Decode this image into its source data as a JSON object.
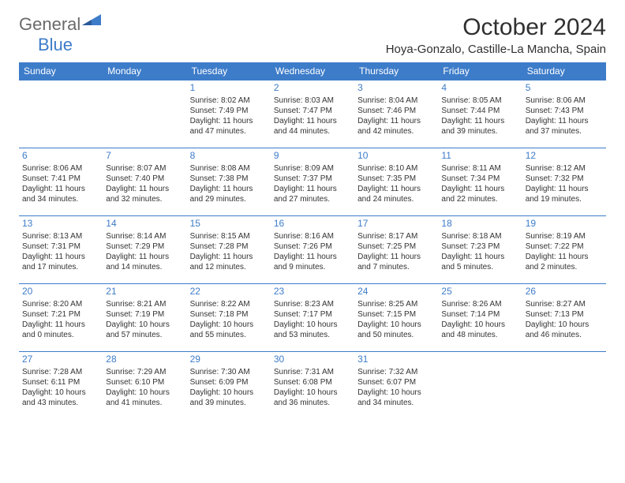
{
  "brand": {
    "general": "General",
    "blue": "Blue"
  },
  "title": "October 2024",
  "location": "Hoya-Gonzalo, Castille-La Mancha, Spain",
  "colors": {
    "header_bg": "#3d7cc9",
    "header_text": "#ffffff",
    "daynum": "#3d7cc9",
    "border": "#3d7cc9",
    "body_text": "#333333",
    "logo_gray": "#6a6a6a"
  },
  "weekdays": [
    "Sunday",
    "Monday",
    "Tuesday",
    "Wednesday",
    "Thursday",
    "Friday",
    "Saturday"
  ],
  "weeks": [
    [
      null,
      null,
      {
        "d": "1",
        "sr": "8:02 AM",
        "ss": "7:49 PM",
        "dl": "11 hours and 47 minutes."
      },
      {
        "d": "2",
        "sr": "8:03 AM",
        "ss": "7:47 PM",
        "dl": "11 hours and 44 minutes."
      },
      {
        "d": "3",
        "sr": "8:04 AM",
        "ss": "7:46 PM",
        "dl": "11 hours and 42 minutes."
      },
      {
        "d": "4",
        "sr": "8:05 AM",
        "ss": "7:44 PM",
        "dl": "11 hours and 39 minutes."
      },
      {
        "d": "5",
        "sr": "8:06 AM",
        "ss": "7:43 PM",
        "dl": "11 hours and 37 minutes."
      }
    ],
    [
      {
        "d": "6",
        "sr": "8:06 AM",
        "ss": "7:41 PM",
        "dl": "11 hours and 34 minutes."
      },
      {
        "d": "7",
        "sr": "8:07 AM",
        "ss": "7:40 PM",
        "dl": "11 hours and 32 minutes."
      },
      {
        "d": "8",
        "sr": "8:08 AM",
        "ss": "7:38 PM",
        "dl": "11 hours and 29 minutes."
      },
      {
        "d": "9",
        "sr": "8:09 AM",
        "ss": "7:37 PM",
        "dl": "11 hours and 27 minutes."
      },
      {
        "d": "10",
        "sr": "8:10 AM",
        "ss": "7:35 PM",
        "dl": "11 hours and 24 minutes."
      },
      {
        "d": "11",
        "sr": "8:11 AM",
        "ss": "7:34 PM",
        "dl": "11 hours and 22 minutes."
      },
      {
        "d": "12",
        "sr": "8:12 AM",
        "ss": "7:32 PM",
        "dl": "11 hours and 19 minutes."
      }
    ],
    [
      {
        "d": "13",
        "sr": "8:13 AM",
        "ss": "7:31 PM",
        "dl": "11 hours and 17 minutes."
      },
      {
        "d": "14",
        "sr": "8:14 AM",
        "ss": "7:29 PM",
        "dl": "11 hours and 14 minutes."
      },
      {
        "d": "15",
        "sr": "8:15 AM",
        "ss": "7:28 PM",
        "dl": "11 hours and 12 minutes."
      },
      {
        "d": "16",
        "sr": "8:16 AM",
        "ss": "7:26 PM",
        "dl": "11 hours and 9 minutes."
      },
      {
        "d": "17",
        "sr": "8:17 AM",
        "ss": "7:25 PM",
        "dl": "11 hours and 7 minutes."
      },
      {
        "d": "18",
        "sr": "8:18 AM",
        "ss": "7:23 PM",
        "dl": "11 hours and 5 minutes."
      },
      {
        "d": "19",
        "sr": "8:19 AM",
        "ss": "7:22 PM",
        "dl": "11 hours and 2 minutes."
      }
    ],
    [
      {
        "d": "20",
        "sr": "8:20 AM",
        "ss": "7:21 PM",
        "dl": "11 hours and 0 minutes."
      },
      {
        "d": "21",
        "sr": "8:21 AM",
        "ss": "7:19 PM",
        "dl": "10 hours and 57 minutes."
      },
      {
        "d": "22",
        "sr": "8:22 AM",
        "ss": "7:18 PM",
        "dl": "10 hours and 55 minutes."
      },
      {
        "d": "23",
        "sr": "8:23 AM",
        "ss": "7:17 PM",
        "dl": "10 hours and 53 minutes."
      },
      {
        "d": "24",
        "sr": "8:25 AM",
        "ss": "7:15 PM",
        "dl": "10 hours and 50 minutes."
      },
      {
        "d": "25",
        "sr": "8:26 AM",
        "ss": "7:14 PM",
        "dl": "10 hours and 48 minutes."
      },
      {
        "d": "26",
        "sr": "8:27 AM",
        "ss": "7:13 PM",
        "dl": "10 hours and 46 minutes."
      }
    ],
    [
      {
        "d": "27",
        "sr": "7:28 AM",
        "ss": "6:11 PM",
        "dl": "10 hours and 43 minutes."
      },
      {
        "d": "28",
        "sr": "7:29 AM",
        "ss": "6:10 PM",
        "dl": "10 hours and 41 minutes."
      },
      {
        "d": "29",
        "sr": "7:30 AM",
        "ss": "6:09 PM",
        "dl": "10 hours and 39 minutes."
      },
      {
        "d": "30",
        "sr": "7:31 AM",
        "ss": "6:08 PM",
        "dl": "10 hours and 36 minutes."
      },
      {
        "d": "31",
        "sr": "7:32 AM",
        "ss": "6:07 PM",
        "dl": "10 hours and 34 minutes."
      },
      null,
      null
    ]
  ],
  "labels": {
    "sunrise": "Sunrise:",
    "sunset": "Sunset:",
    "daylight": "Daylight:"
  }
}
